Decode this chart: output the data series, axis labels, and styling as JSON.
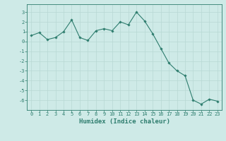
{
  "x": [
    0,
    1,
    2,
    3,
    4,
    5,
    6,
    7,
    8,
    9,
    10,
    11,
    12,
    13,
    14,
    15,
    16,
    17,
    18,
    19,
    20,
    21,
    22,
    23
  ],
  "y": [
    0.6,
    0.9,
    0.2,
    0.4,
    1.0,
    2.2,
    0.4,
    0.1,
    1.1,
    1.3,
    1.1,
    2.0,
    1.7,
    3.0,
    2.1,
    0.8,
    -0.7,
    -2.2,
    -3.0,
    -3.5,
    -6.0,
    -6.4,
    -5.9,
    -6.1
  ],
  "line_color": "#2e7d6e",
  "marker": "D",
  "marker_size": 1.8,
  "line_width": 0.8,
  "background_color": "#ceeae7",
  "grid_color": "#b8d8d4",
  "spine_color": "#2e7d6e",
  "tick_color": "#2e7d6e",
  "xlabel": "Humidex (Indice chaleur)",
  "xlim": [
    -0.5,
    23.5
  ],
  "ylim": [
    -7,
    3.8
  ],
  "yticks": [
    -6,
    -5,
    -4,
    -3,
    -2,
    -1,
    0,
    1,
    2,
    3
  ],
  "xticks": [
    0,
    1,
    2,
    3,
    4,
    5,
    6,
    7,
    8,
    9,
    10,
    11,
    12,
    13,
    14,
    15,
    16,
    17,
    18,
    19,
    20,
    21,
    22,
    23
  ],
  "tick_fontsize": 5.0,
  "xlabel_fontsize": 6.5,
  "tick_label_color": "#2e7d6e"
}
